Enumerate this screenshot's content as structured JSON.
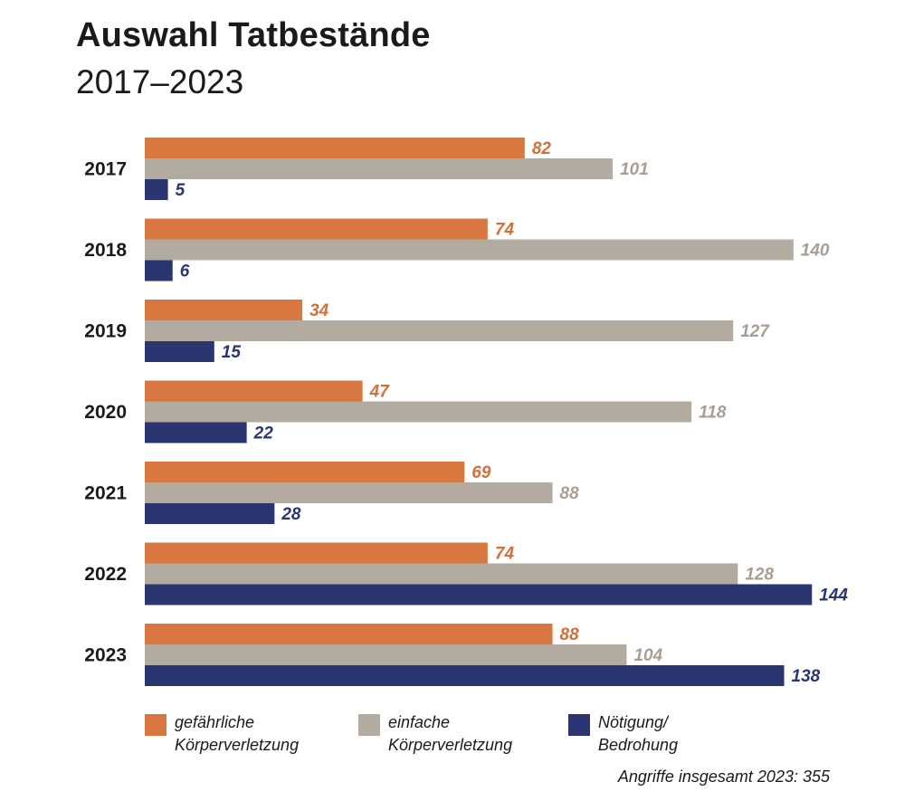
{
  "title": "Auswahl Tatbestände",
  "subtitle": "2017–2023",
  "legend": [
    {
      "line1": "gefährliche",
      "line2": "Körperverletzung",
      "color": "#d97740"
    },
    {
      "line1": "einfache",
      "line2": "Körperverletzung",
      "color": "#b3aaa0"
    },
    {
      "line1": "Nötigung/",
      "line2": "Bedrohung",
      "color": "#2b3570"
    }
  ],
  "footnote": "Angriffe insgesamt 2023: 355",
  "chart_data": {
    "type": "bar",
    "orientation": "horizontal",
    "categories": [
      "2017",
      "2018",
      "2019",
      "2020",
      "2021",
      "2022",
      "2023"
    ],
    "series": [
      {
        "name": "gefährliche Körperverletzung",
        "color": "#d97740",
        "label_color": "#d2703a",
        "values": [
          82,
          74,
          34,
          47,
          69,
          74,
          88
        ]
      },
      {
        "name": "einfache Körperverletzung",
        "color": "#b3aaa0",
        "label_color": "#a89e93",
        "values": [
          101,
          140,
          127,
          118,
          88,
          128,
          104
        ]
      },
      {
        "name": "Nötigung/ Bedrohung",
        "color": "#2b3570",
        "label_color": "#2b3570",
        "values": [
          5,
          6,
          15,
          22,
          28,
          144,
          138
        ]
      }
    ],
    "xlim": [
      0,
      150
    ],
    "grid": false,
    "legend_position": "bottom"
  }
}
